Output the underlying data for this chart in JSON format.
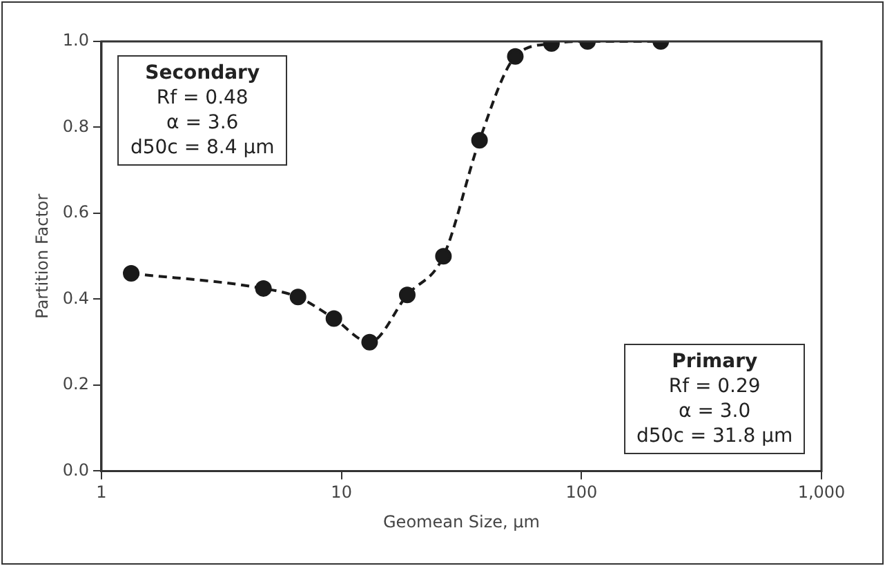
{
  "chart_data": {
    "type": "line",
    "xlabel": "Geomean Size, µm",
    "ylabel": "Partition Factor",
    "x": [
      1.33,
      4.73,
      6.59,
      9.3,
      13.1,
      18.8,
      26.6,
      37.6,
      53,
      75,
      106,
      214
    ],
    "series": [
      {
        "color": "#1a1a1a",
        "values": [
          0.46,
          0.425,
          0.405,
          0.355,
          0.3,
          0.41,
          0.5,
          0.77,
          0.965,
          0.995,
          1.0,
          1.0
        ]
      }
    ],
    "xlim": [
      1,
      1000
    ],
    "xticks": [
      1,
      10,
      100,
      {
        "value": 1000,
        "label": "1,000"
      }
    ],
    "ylim": [
      0,
      1
    ],
    "yticks": [
      {
        "value": 0,
        "label": "0.0"
      },
      {
        "value": 0.2,
        "label": "0.2"
      },
      {
        "value": 0.4,
        "label": "0.4"
      },
      {
        "value": 0.6,
        "label": "0.6"
      },
      {
        "value": 0.8,
        "label": "0.8"
      },
      {
        "value": 1,
        "label": "1.0"
      }
    ],
    "log": "x",
    "grid": false,
    "legend": false,
    "marker": "circle",
    "line_style": "dashed",
    "annotations": [
      "Secondary\nRf = 0.48\nα = 3.6\nd50c = 8.4 µm",
      "Primary\nRf = 0.29\nα = 3.0\nd50c = 31.8 µm"
    ]
  }
}
